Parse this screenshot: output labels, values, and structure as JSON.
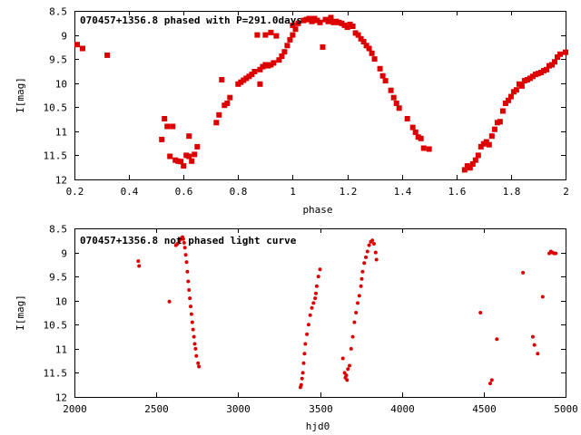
{
  "chart_data": [
    {
      "type": "scatter",
      "title": "070457+1356.8 phased with P=291.0days",
      "xlabel": "phase",
      "ylabel": "I[mag]",
      "xlim": [
        0.2,
        2.0
      ],
      "ylim": [
        12,
        8.5
      ],
      "y_inverted": true,
      "xticks": [
        "0.2",
        "0.4",
        "0.6",
        "0.8",
        "1",
        "1.2",
        "1.4",
        "1.6",
        "1.8",
        "2"
      ],
      "yticks": [
        "8.5",
        "9",
        "9.5",
        "10",
        "10.5",
        "11",
        "11.5",
        "12"
      ],
      "marker": "filled-square",
      "color": "#dd0000",
      "points": [
        [
          0.21,
          9.2
        ],
        [
          0.23,
          9.28
        ],
        [
          0.32,
          9.42
        ],
        [
          0.52,
          11.17
        ],
        [
          0.53,
          10.74
        ],
        [
          0.54,
          10.9
        ],
        [
          0.55,
          11.52
        ],
        [
          0.56,
          10.9
        ],
        [
          0.57,
          11.6
        ],
        [
          0.58,
          11.62
        ],
        [
          0.59,
          11.63
        ],
        [
          0.6,
          11.72
        ],
        [
          0.61,
          11.5
        ],
        [
          0.62,
          11.52
        ],
        [
          0.62,
          11.1
        ],
        [
          0.63,
          11.62
        ],
        [
          0.64,
          11.48
        ],
        [
          0.65,
          11.32
        ],
        [
          0.72,
          10.82
        ],
        [
          0.73,
          10.66
        ],
        [
          0.74,
          9.93
        ],
        [
          0.75,
          10.46
        ],
        [
          0.76,
          10.42
        ],
        [
          0.77,
          10.3
        ],
        [
          0.8,
          10.02
        ],
        [
          0.81,
          9.98
        ],
        [
          0.82,
          9.94
        ],
        [
          0.83,
          9.9
        ],
        [
          0.84,
          9.86
        ],
        [
          0.85,
          9.82
        ],
        [
          0.86,
          9.76
        ],
        [
          0.87,
          9.0
        ],
        [
          0.88,
          9.72
        ],
        [
          0.88,
          10.02
        ],
        [
          0.89,
          9.66
        ],
        [
          0.9,
          9.62
        ],
        [
          0.9,
          9.0
        ],
        [
          0.91,
          9.64
        ],
        [
          0.92,
          9.62
        ],
        [
          0.92,
          8.95
        ],
        [
          0.93,
          9.58
        ],
        [
          0.94,
          9.02
        ],
        [
          0.95,
          9.52
        ],
        [
          0.96,
          9.44
        ],
        [
          0.97,
          9.35
        ],
        [
          0.98,
          9.22
        ],
        [
          0.99,
          9.1
        ],
        [
          1.0,
          9.0
        ],
        [
          1.0,
          8.8
        ],
        [
          1.01,
          8.88
        ],
        [
          1.02,
          8.76
        ],
        [
          1.04,
          8.7
        ],
        [
          1.05,
          8.68
        ],
        [
          1.06,
          8.66
        ],
        [
          1.07,
          8.72
        ],
        [
          1.08,
          8.66
        ],
        [
          1.09,
          8.7
        ],
        [
          1.1,
          8.74
        ],
        [
          1.11,
          9.25
        ],
        [
          1.12,
          8.68
        ],
        [
          1.13,
          8.72
        ],
        [
          1.14,
          8.64
        ],
        [
          1.15,
          8.74
        ],
        [
          1.16,
          8.72
        ],
        [
          1.17,
          8.74
        ],
        [
          1.18,
          8.76
        ],
        [
          1.19,
          8.8
        ],
        [
          1.2,
          8.84
        ],
        [
          1.21,
          8.78
        ],
        [
          1.22,
          8.82
        ],
        [
          1.23,
          8.96
        ],
        [
          1.24,
          9.0
        ],
        [
          1.25,
          9.08
        ],
        [
          1.26,
          9.14
        ],
        [
          1.27,
          9.22
        ],
        [
          1.28,
          9.28
        ],
        [
          1.29,
          9.38
        ],
        [
          1.3,
          9.5
        ],
        [
          1.32,
          9.7
        ],
        [
          1.33,
          9.85
        ],
        [
          1.34,
          9.95
        ],
        [
          1.36,
          10.15
        ],
        [
          1.37,
          10.3
        ],
        [
          1.38,
          10.42
        ],
        [
          1.39,
          10.52
        ],
        [
          1.42,
          10.74
        ],
        [
          1.44,
          10.92
        ],
        [
          1.45,
          11.02
        ],
        [
          1.46,
          11.12
        ],
        [
          1.47,
          11.15
        ],
        [
          1.48,
          11.35
        ],
        [
          1.5,
          11.37
        ],
        [
          1.63,
          11.8
        ],
        [
          1.64,
          11.72
        ],
        [
          1.65,
          11.76
        ],
        [
          1.66,
          11.68
        ],
        [
          1.67,
          11.6
        ],
        [
          1.68,
          11.5
        ],
        [
          1.69,
          11.32
        ],
        [
          1.7,
          11.26
        ],
        [
          1.71,
          11.22
        ],
        [
          1.72,
          11.28
        ],
        [
          1.73,
          11.1
        ],
        [
          1.74,
          10.96
        ],
        [
          1.75,
          10.82
        ],
        [
          1.76,
          10.8
        ],
        [
          1.77,
          10.58
        ],
        [
          1.78,
          10.42
        ],
        [
          1.79,
          10.36
        ],
        [
          1.8,
          10.28
        ],
        [
          1.81,
          10.18
        ],
        [
          1.82,
          10.14
        ],
        [
          1.83,
          10.02
        ],
        [
          1.84,
          10.06
        ],
        [
          1.85,
          9.95
        ],
        [
          1.86,
          9.93
        ],
        [
          1.87,
          9.9
        ],
        [
          1.88,
          9.86
        ],
        [
          1.89,
          9.82
        ],
        [
          1.9,
          9.8
        ],
        [
          1.91,
          9.78
        ],
        [
          1.92,
          9.74
        ],
        [
          1.93,
          9.72
        ],
        [
          1.94,
          9.64
        ],
        [
          1.95,
          9.62
        ],
        [
          1.96,
          9.56
        ],
        [
          1.97,
          9.46
        ],
        [
          1.98,
          9.4
        ],
        [
          2.0,
          9.36
        ]
      ]
    },
    {
      "type": "scatter",
      "title": "070457+1356.8 not phased light curve",
      "xlabel": "hjd0",
      "ylabel": "I[mag]",
      "xlim": [
        2000,
        5000
      ],
      "ylim": [
        12,
        8.5
      ],
      "y_inverted": true,
      "xticks": [
        "2000",
        "2500",
        "3000",
        "3500",
        "4000",
        "4500",
        "5000"
      ],
      "yticks": [
        "8.5",
        "9",
        "9.5",
        "10",
        "10.5",
        "11",
        "11.5",
        "12"
      ],
      "marker": "dot",
      "color": "#dd0000",
      "points": [
        [
          2390,
          9.18
        ],
        [
          2395,
          9.28
        ],
        [
          2580,
          10.02
        ],
        [
          2620,
          8.85
        ],
        [
          2630,
          8.82
        ],
        [
          2640,
          8.76
        ],
        [
          2650,
          8.72
        ],
        [
          2655,
          8.7
        ],
        [
          2660,
          8.68
        ],
        [
          2665,
          8.72
        ],
        [
          2670,
          8.8
        ],
        [
          2675,
          8.9
        ],
        [
          2680,
          9.05
        ],
        [
          2685,
          9.2
        ],
        [
          2690,
          9.4
        ],
        [
          2695,
          9.6
        ],
        [
          2700,
          9.78
        ],
        [
          2705,
          9.95
        ],
        [
          2710,
          10.12
        ],
        [
          2715,
          10.28
        ],
        [
          2720,
          10.45
        ],
        [
          2725,
          10.6
        ],
        [
          2730,
          10.75
        ],
        [
          2735,
          10.9
        ],
        [
          2740,
          11.0
        ],
        [
          2745,
          11.15
        ],
        [
          2755,
          11.3
        ],
        [
          2760,
          11.37
        ],
        [
          3380,
          11.8
        ],
        [
          3385,
          11.75
        ],
        [
          3390,
          11.62
        ],
        [
          3395,
          11.5
        ],
        [
          3400,
          11.3
        ],
        [
          3405,
          11.1
        ],
        [
          3410,
          10.9
        ],
        [
          3420,
          10.7
        ],
        [
          3430,
          10.5
        ],
        [
          3440,
          10.3
        ],
        [
          3450,
          10.15
        ],
        [
          3460,
          10.05
        ],
        [
          3470,
          9.95
        ],
        [
          3475,
          9.85
        ],
        [
          3480,
          9.7
        ],
        [
          3490,
          9.5
        ],
        [
          3500,
          9.35
        ],
        [
          3640,
          11.2
        ],
        [
          3650,
          11.5
        ],
        [
          3655,
          11.6
        ],
        [
          3660,
          11.55
        ],
        [
          3665,
          11.65
        ],
        [
          3670,
          11.42
        ],
        [
          3680,
          11.35
        ],
        [
          3690,
          11.0
        ],
        [
          3700,
          10.75
        ],
        [
          3710,
          10.45
        ],
        [
          3720,
          10.25
        ],
        [
          3730,
          10.05
        ],
        [
          3740,
          9.9
        ],
        [
          3750,
          9.7
        ],
        [
          3755,
          9.55
        ],
        [
          3760,
          9.4
        ],
        [
          3770,
          9.22
        ],
        [
          3780,
          9.1
        ],
        [
          3790,
          8.98
        ],
        [
          3800,
          8.85
        ],
        [
          3810,
          8.78
        ],
        [
          3820,
          8.75
        ],
        [
          3830,
          8.82
        ],
        [
          3840,
          9.0
        ],
        [
          3845,
          9.15
        ],
        [
          4480,
          10.25
        ],
        [
          4540,
          11.72
        ],
        [
          4550,
          11.65
        ],
        [
          4580,
          10.8
        ],
        [
          4740,
          9.42
        ],
        [
          4800,
          10.75
        ],
        [
          4810,
          10.92
        ],
        [
          4830,
          11.1
        ],
        [
          4860,
          9.92
        ],
        [
          4900,
          9.02
        ],
        [
          4910,
          8.98
        ],
        [
          4920,
          9.0
        ],
        [
          4930,
          9.02
        ],
        [
          4940,
          9.02
        ]
      ]
    }
  ]
}
